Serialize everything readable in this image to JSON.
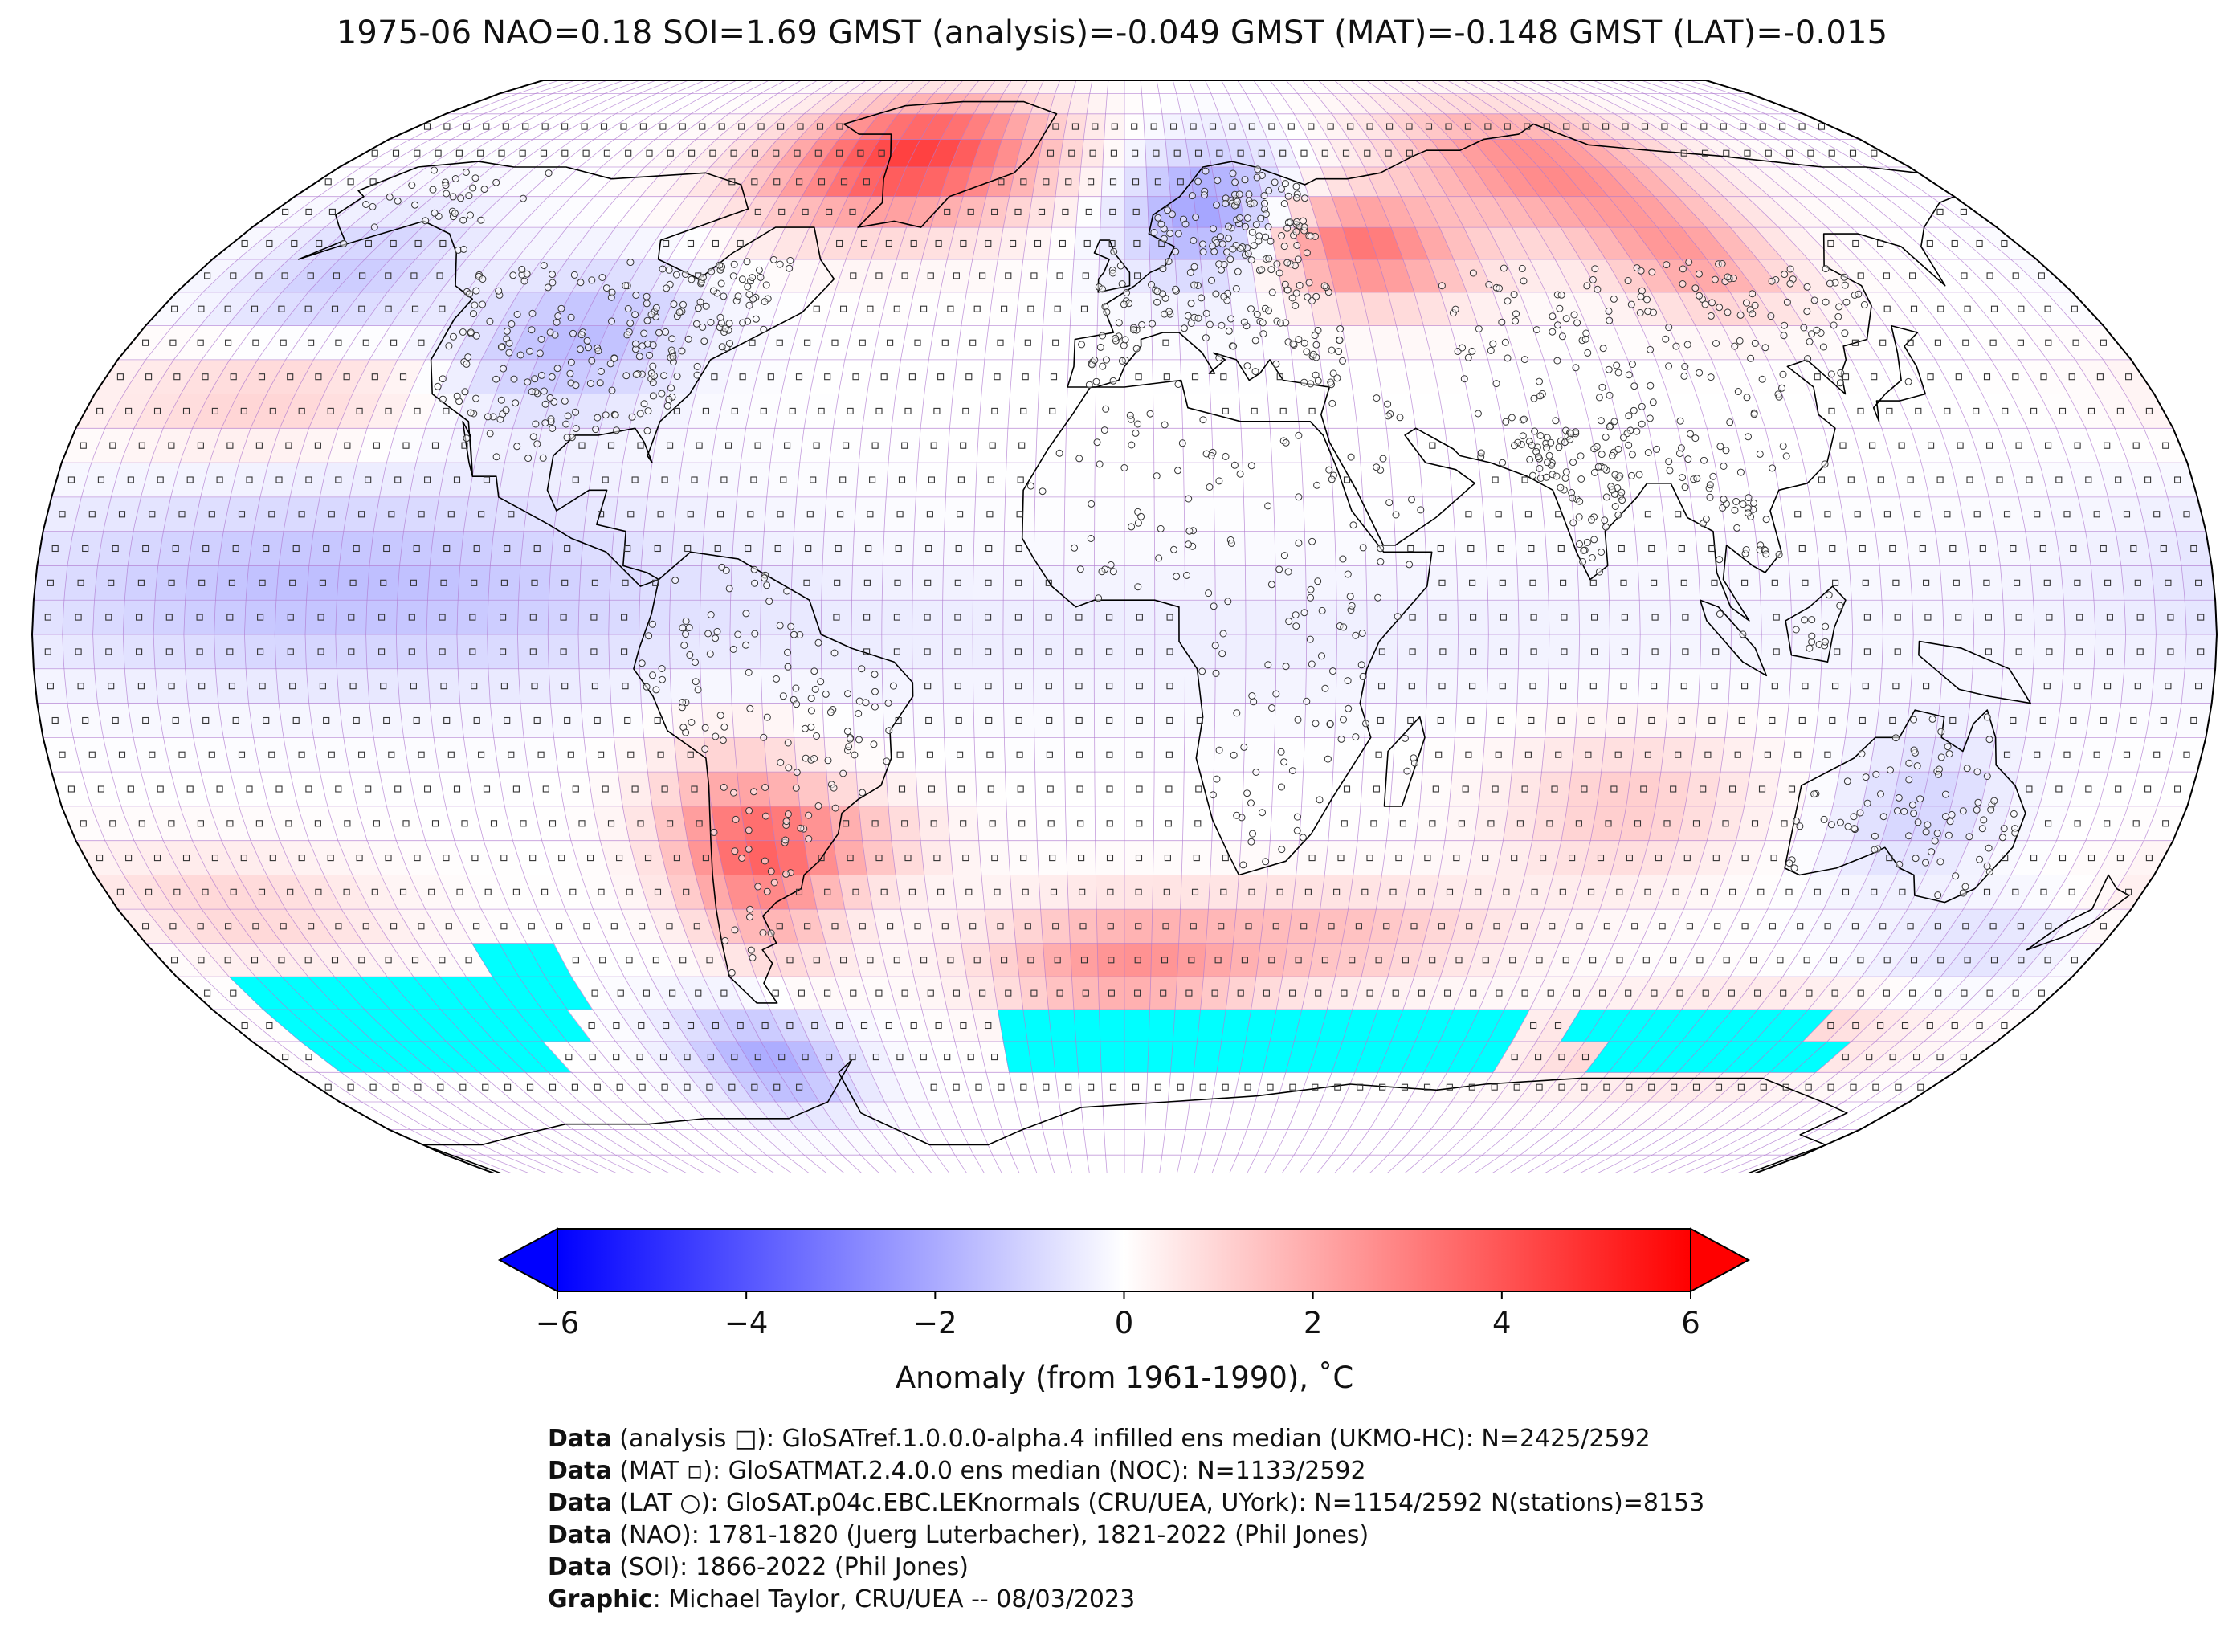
{
  "title": "1975-06 NAO=0.18 SOI=1.69 GMST (analysis)=-0.049 GMST (MAT)=-0.148 GMST (LAT)=-0.015",
  "colorbar": {
    "ticks": [
      "−6",
      "−4",
      "−2",
      "0",
      "2",
      "4",
      "6"
    ],
    "range": [
      -6,
      6
    ],
    "label": "Anomaly (from 1961-1990), ˚C",
    "colors": {
      "min": "#0000ff",
      "mid": "#ffffff",
      "max": "#ff0000"
    }
  },
  "map": {
    "projection": "Robinson",
    "grid_spacing_deg": 5,
    "colors": {
      "missing_ocean": "#00ffff",
      "missing_land": "#707070",
      "gridline": "#b07bd0",
      "coastline": "#000000"
    },
    "anomaly_regions": [
      {
        "name": "Northern Canada / Greenland",
        "anomaly": 4.5
      },
      {
        "name": "Russia / Western Siberia",
        "anomaly": 3.5
      },
      {
        "name": "Eastern Siberia",
        "anomaly": 3.0
      },
      {
        "name": "Northern Europe",
        "anomaly": -2.5
      },
      {
        "name": "North America",
        "anomaly": -1.5
      },
      {
        "name": "Tropical Pacific",
        "anomaly": -1.5
      },
      {
        "name": "Southern South America",
        "anomaly": 3.0
      },
      {
        "name": "South Atlantic",
        "anomaly": 2.5
      },
      {
        "name": "West Antarctic sector",
        "anomaly": -2.0
      }
    ]
  },
  "credits": [
    {
      "bold": "Data",
      "text": " (analysis □): GloSATref.1.0.0.0-alpha.4 infilled ens median (UKMO-HC): N=2425/2592"
    },
    {
      "bold": "Data",
      "text": " (MAT ▫): GloSATMAT.2.4.0.0 ens median (NOC): N=1133/2592"
    },
    {
      "bold": "Data",
      "text": " (LAT ○): GloSAT.p04c.EBC.LEKnormals (CRU/UEA, UYork): N=1154/2592 N(stations)=8153"
    },
    {
      "bold": "Data",
      "text": " (NAO): 1781-1820 (Juerg Luterbacher), 1821-2022 (Phil Jones)"
    },
    {
      "bold": "Data",
      "text": " (SOI): 1866-2022 (Phil Jones)"
    },
    {
      "bold": "Graphic",
      "text": ": Michael Taylor, CRU/UEA -- 08/03/2023"
    }
  ]
}
